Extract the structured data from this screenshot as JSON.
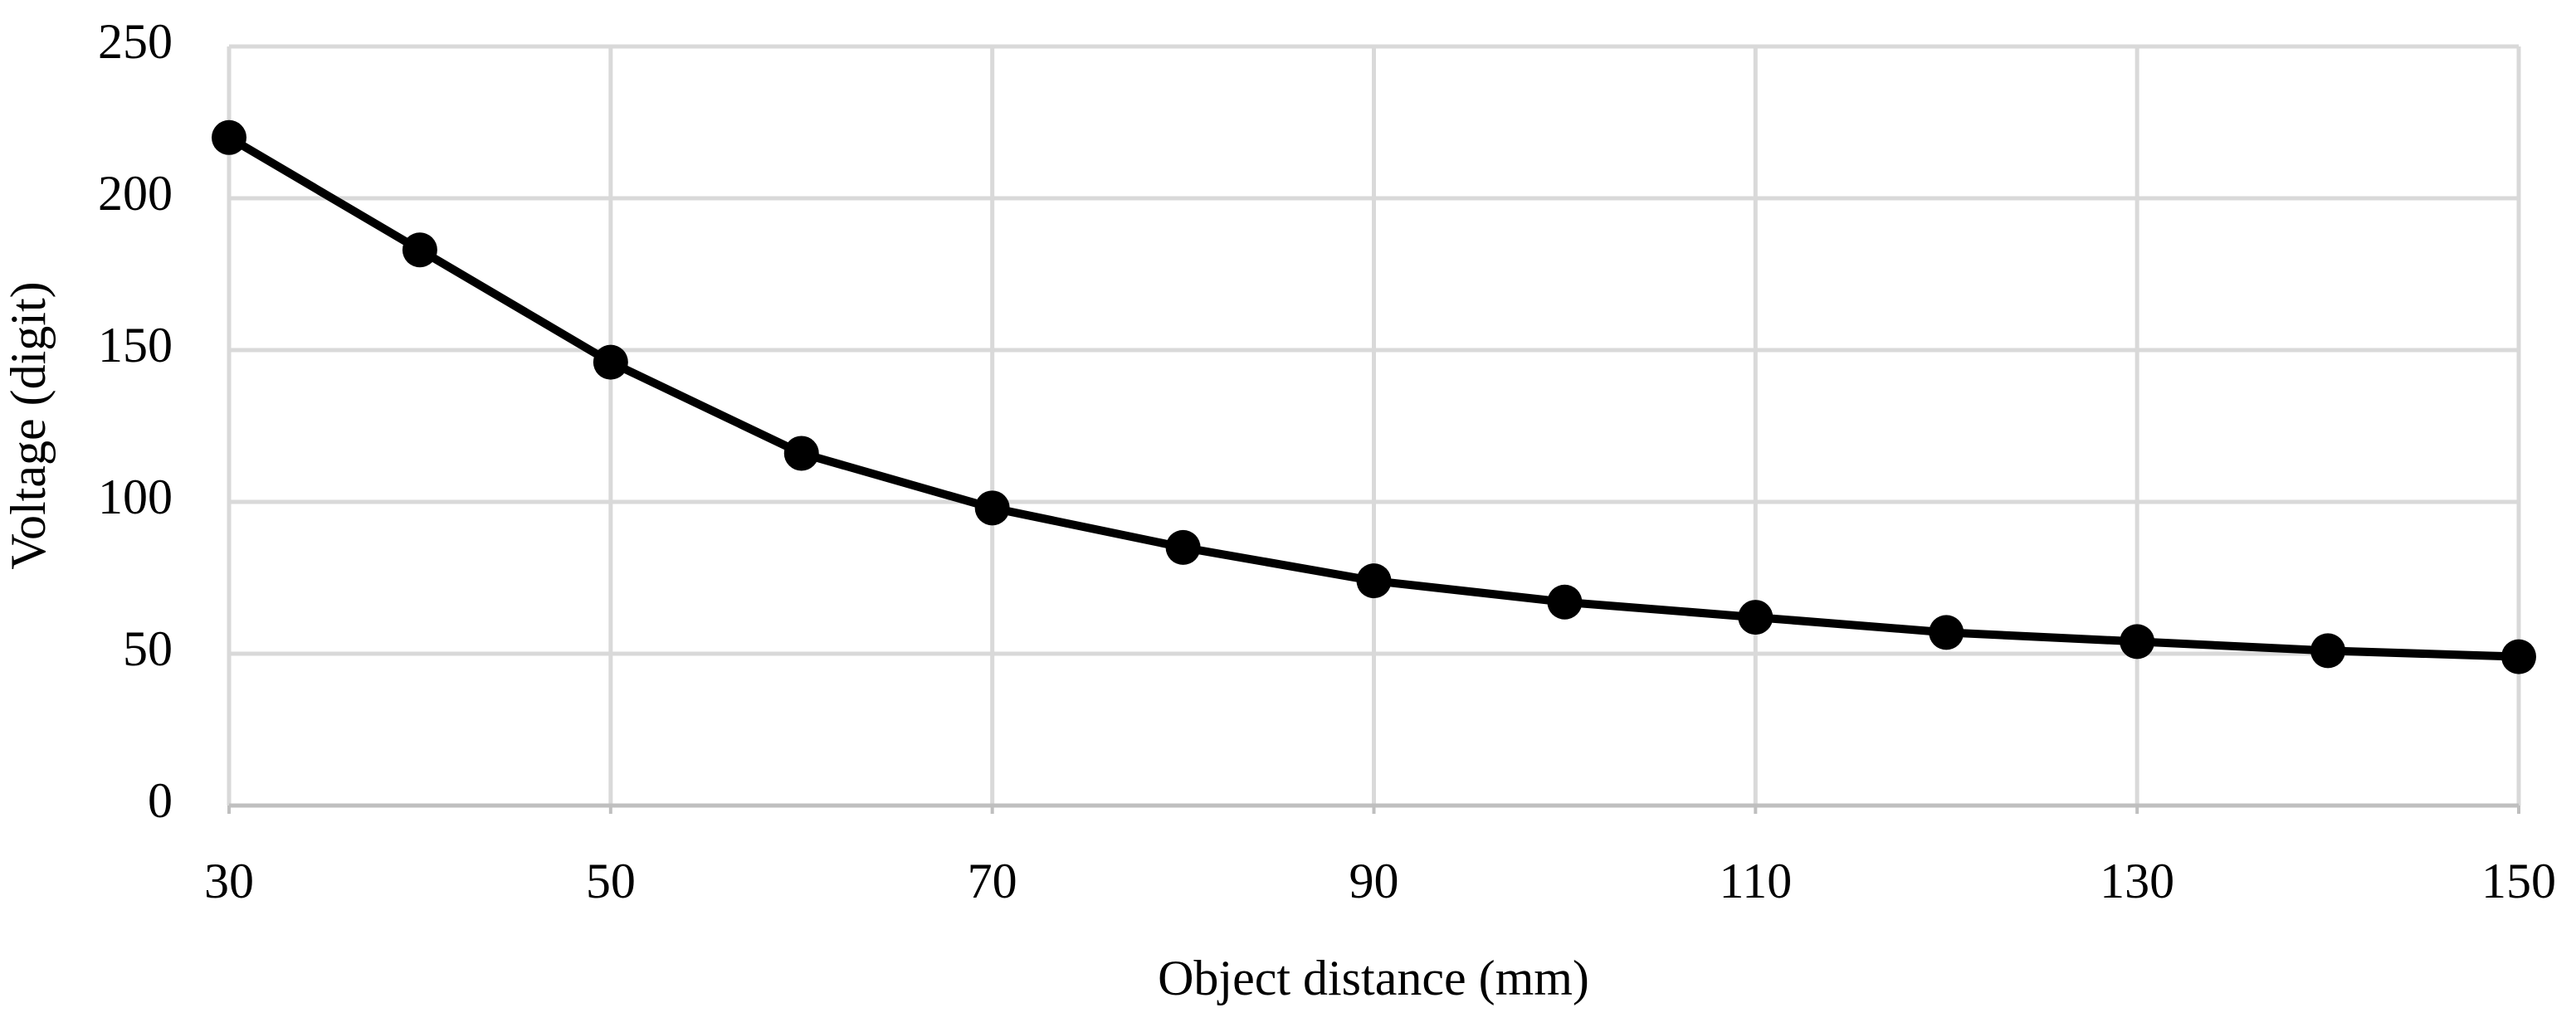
{
  "chart_data": {
    "type": "line",
    "x_label": "Object distance (mm)",
    "y_label": "Voltage (digit)",
    "x": [
      30,
      40,
      50,
      60,
      70,
      80,
      90,
      100,
      110,
      120,
      130,
      140,
      150
    ],
    "values": [
      220,
      183,
      146,
      116,
      98,
      85,
      74,
      67,
      62,
      57,
      54,
      51,
      49
    ],
    "color": "#000000",
    "xlim": [
      30,
      150
    ],
    "xticks": [
      30,
      50,
      70,
      90,
      110,
      130,
      150
    ],
    "ylim": [
      0,
      250
    ],
    "yticks": [
      0,
      50,
      100,
      150,
      200,
      250
    ],
    "grid": true,
    "markers": true
  }
}
